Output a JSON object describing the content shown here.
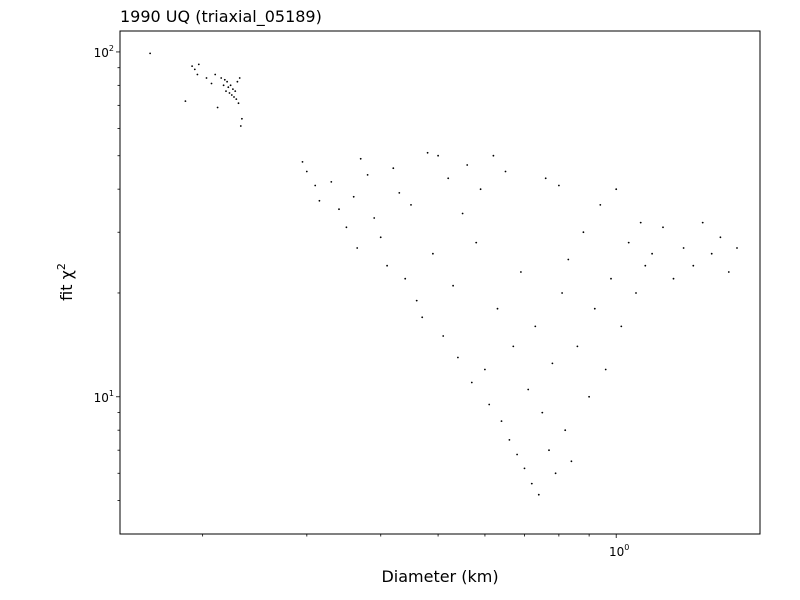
{
  "chart_data": {
    "type": "scatter",
    "title": "1990 UQ (triaxial_05189)",
    "xlabel": "Diameter (km)",
    "ylabel_main": "fit χ",
    "ylabel_sup": "2",
    "x_scale": "log",
    "y_scale": "log",
    "xlim": [
      0.145,
      1.75
    ],
    "ylim": [
      4.0,
      115
    ],
    "grid": false,
    "marker_color": "#000000",
    "x_ticks": [
      {
        "value": 1.0,
        "base": "10",
        "exp": "0"
      }
    ],
    "y_ticks": [
      {
        "value": 10,
        "base": "10",
        "exp": "1"
      },
      {
        "value": 100,
        "base": "10",
        "exp": "2"
      }
    ],
    "series": [
      {
        "points": [
          [
            0.163,
            99
          ],
          [
            0.187,
            72
          ],
          [
            0.192,
            91
          ],
          [
            0.194,
            89
          ],
          [
            0.196,
            86
          ],
          [
            0.197,
            92
          ],
          [
            0.203,
            84
          ],
          [
            0.207,
            81
          ],
          [
            0.21,
            86
          ],
          [
            0.212,
            69
          ],
          [
            0.215,
            84
          ],
          [
            0.217,
            80
          ],
          [
            0.218,
            83
          ],
          [
            0.219,
            77
          ],
          [
            0.22,
            82
          ],
          [
            0.221,
            79
          ],
          [
            0.222,
            76
          ],
          [
            0.223,
            80
          ],
          [
            0.224,
            75
          ],
          [
            0.225,
            78
          ],
          [
            0.226,
            74
          ],
          [
            0.227,
            77
          ],
          [
            0.228,
            73
          ],
          [
            0.229,
            82
          ],
          [
            0.23,
            71
          ],
          [
            0.231,
            84
          ],
          [
            0.232,
            61
          ],
          [
            0.233,
            64
          ],
          [
            0.295,
            48
          ],
          [
            0.3,
            45
          ],
          [
            0.31,
            41
          ],
          [
            0.315,
            37
          ],
          [
            0.33,
            42
          ],
          [
            0.34,
            35
          ],
          [
            0.35,
            31
          ],
          [
            0.36,
            38
          ],
          [
            0.365,
            27
          ],
          [
            0.37,
            49
          ],
          [
            0.38,
            44
          ],
          [
            0.39,
            33
          ],
          [
            0.4,
            29
          ],
          [
            0.41,
            24
          ],
          [
            0.42,
            46
          ],
          [
            0.43,
            39
          ],
          [
            0.44,
            22
          ],
          [
            0.45,
            36
          ],
          [
            0.46,
            19
          ],
          [
            0.47,
            17
          ],
          [
            0.48,
            51
          ],
          [
            0.49,
            26
          ],
          [
            0.5,
            50
          ],
          [
            0.51,
            15
          ],
          [
            0.52,
            43
          ],
          [
            0.53,
            21
          ],
          [
            0.54,
            13
          ],
          [
            0.55,
            34
          ],
          [
            0.56,
            47
          ],
          [
            0.57,
            11
          ],
          [
            0.58,
            28
          ],
          [
            0.59,
            40
          ],
          [
            0.6,
            12
          ],
          [
            0.61,
            9.5
          ],
          [
            0.62,
            50
          ],
          [
            0.63,
            18
          ],
          [
            0.64,
            8.5
          ],
          [
            0.65,
            45
          ],
          [
            0.66,
            7.5
          ],
          [
            0.67,
            14
          ],
          [
            0.68,
            6.8
          ],
          [
            0.69,
            23
          ],
          [
            0.7,
            6.2
          ],
          [
            0.71,
            10.5
          ],
          [
            0.72,
            5.6
          ],
          [
            0.73,
            16
          ],
          [
            0.74,
            5.2
          ],
          [
            0.75,
            9
          ],
          [
            0.76,
            43
          ],
          [
            0.77,
            7
          ],
          [
            0.78,
            12.5
          ],
          [
            0.79,
            6
          ],
          [
            0.8,
            41
          ],
          [
            0.81,
            20
          ],
          [
            0.82,
            8
          ],
          [
            0.83,
            25
          ],
          [
            0.84,
            6.5
          ],
          [
            0.86,
            14
          ],
          [
            0.88,
            30
          ],
          [
            0.9,
            10
          ],
          [
            0.92,
            18
          ],
          [
            0.94,
            36
          ],
          [
            0.96,
            12
          ],
          [
            0.98,
            22
          ],
          [
            1.0,
            40
          ],
          [
            1.02,
            16
          ],
          [
            1.05,
            28
          ],
          [
            1.08,
            20
          ],
          [
            1.1,
            32
          ],
          [
            1.12,
            24
          ],
          [
            1.15,
            26
          ],
          [
            1.2,
            31
          ],
          [
            1.25,
            22
          ],
          [
            1.3,
            27
          ],
          [
            1.35,
            24
          ],
          [
            1.4,
            32
          ],
          [
            1.45,
            26
          ],
          [
            1.5,
            29
          ],
          [
            1.55,
            23
          ],
          [
            1.6,
            27
          ]
        ]
      }
    ]
  }
}
